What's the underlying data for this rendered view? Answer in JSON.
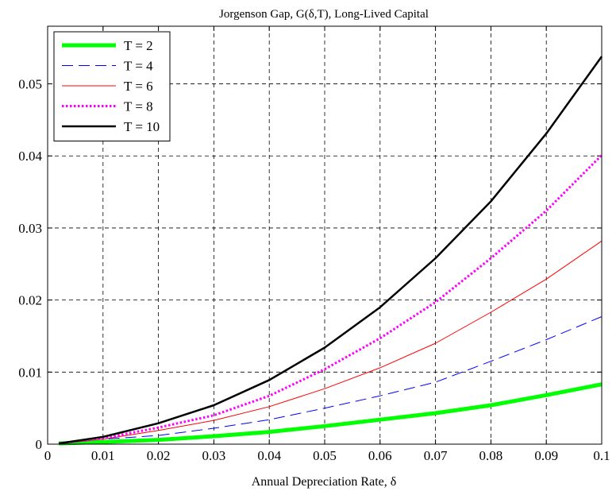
{
  "chart_data": {
    "type": "line",
    "title": "Jorgenson Gap, G(δ,T), Long-Lived Capital",
    "xlabel": "Annual Depreciation Rate, δ",
    "ylabel": "",
    "xlim": [
      0,
      0.1
    ],
    "ylim": [
      0,
      0.058
    ],
    "xticks": [
      "0",
      "0.01",
      "0.02",
      "0.03",
      "0.04",
      "0.05",
      "0.06",
      "0.07",
      "0.08",
      "0.09",
      "0.1"
    ],
    "yticks": [
      "0",
      "0.01",
      "0.02",
      "0.03",
      "0.04",
      "0.05"
    ],
    "grid": true,
    "legend_position": "top-left",
    "x": [
      0.002,
      0.01,
      0.02,
      0.03,
      0.04,
      0.05,
      0.06,
      0.07,
      0.08,
      0.09,
      0.1
    ],
    "series": [
      {
        "name": "T = 2",
        "color": "#00ff00",
        "style": "thick-solid",
        "values": [
          0.0001,
          0.0003,
          0.0006,
          0.0011,
          0.0017,
          0.0025,
          0.0034,
          0.0043,
          0.0054,
          0.0068,
          0.0083
        ]
      },
      {
        "name": "T = 4",
        "color": "#0000ff",
        "style": "long-dash",
        "values": [
          0.0001,
          0.0007,
          0.0012,
          0.0022,
          0.0034,
          0.005,
          0.0067,
          0.0086,
          0.0115,
          0.0145,
          0.0177
        ]
      },
      {
        "name": "T = 6",
        "color": "#ff0000",
        "style": "thin-solid",
        "values": [
          0.0001,
          0.0007,
          0.0019,
          0.0033,
          0.0052,
          0.0077,
          0.0106,
          0.014,
          0.0183,
          0.0229,
          0.0282
        ]
      },
      {
        "name": "T = 8",
        "color": "#ff00ff",
        "style": "dotted",
        "values": [
          0.0001,
          0.0008,
          0.0023,
          0.004,
          0.0067,
          0.0104,
          0.0147,
          0.0197,
          0.0258,
          0.0324,
          0.0401
        ]
      },
      {
        "name": "T = 10",
        "color": "#000000",
        "style": "solid",
        "values": [
          0.0001,
          0.001,
          0.0029,
          0.0054,
          0.0089,
          0.0134,
          0.019,
          0.0258,
          0.0337,
          0.0431,
          0.0538
        ]
      }
    ]
  }
}
